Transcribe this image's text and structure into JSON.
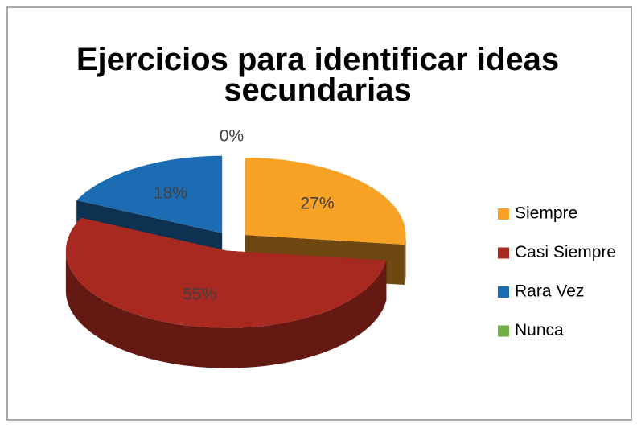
{
  "chart_data": {
    "type": "pie3d",
    "title": "Ejercicios para identificar ideas secundarias",
    "categories": [
      "Siempre",
      "Casi Siempre",
      "Rara Vez",
      "Nunca"
    ],
    "values": [
      27,
      55,
      18,
      0
    ],
    "value_labels": [
      "27%",
      "55%",
      "18%",
      "0%"
    ],
    "colors": [
      "#f7a125",
      "#a8291f",
      "#1c6cb4",
      "#72ad48"
    ],
    "legend": "right"
  }
}
